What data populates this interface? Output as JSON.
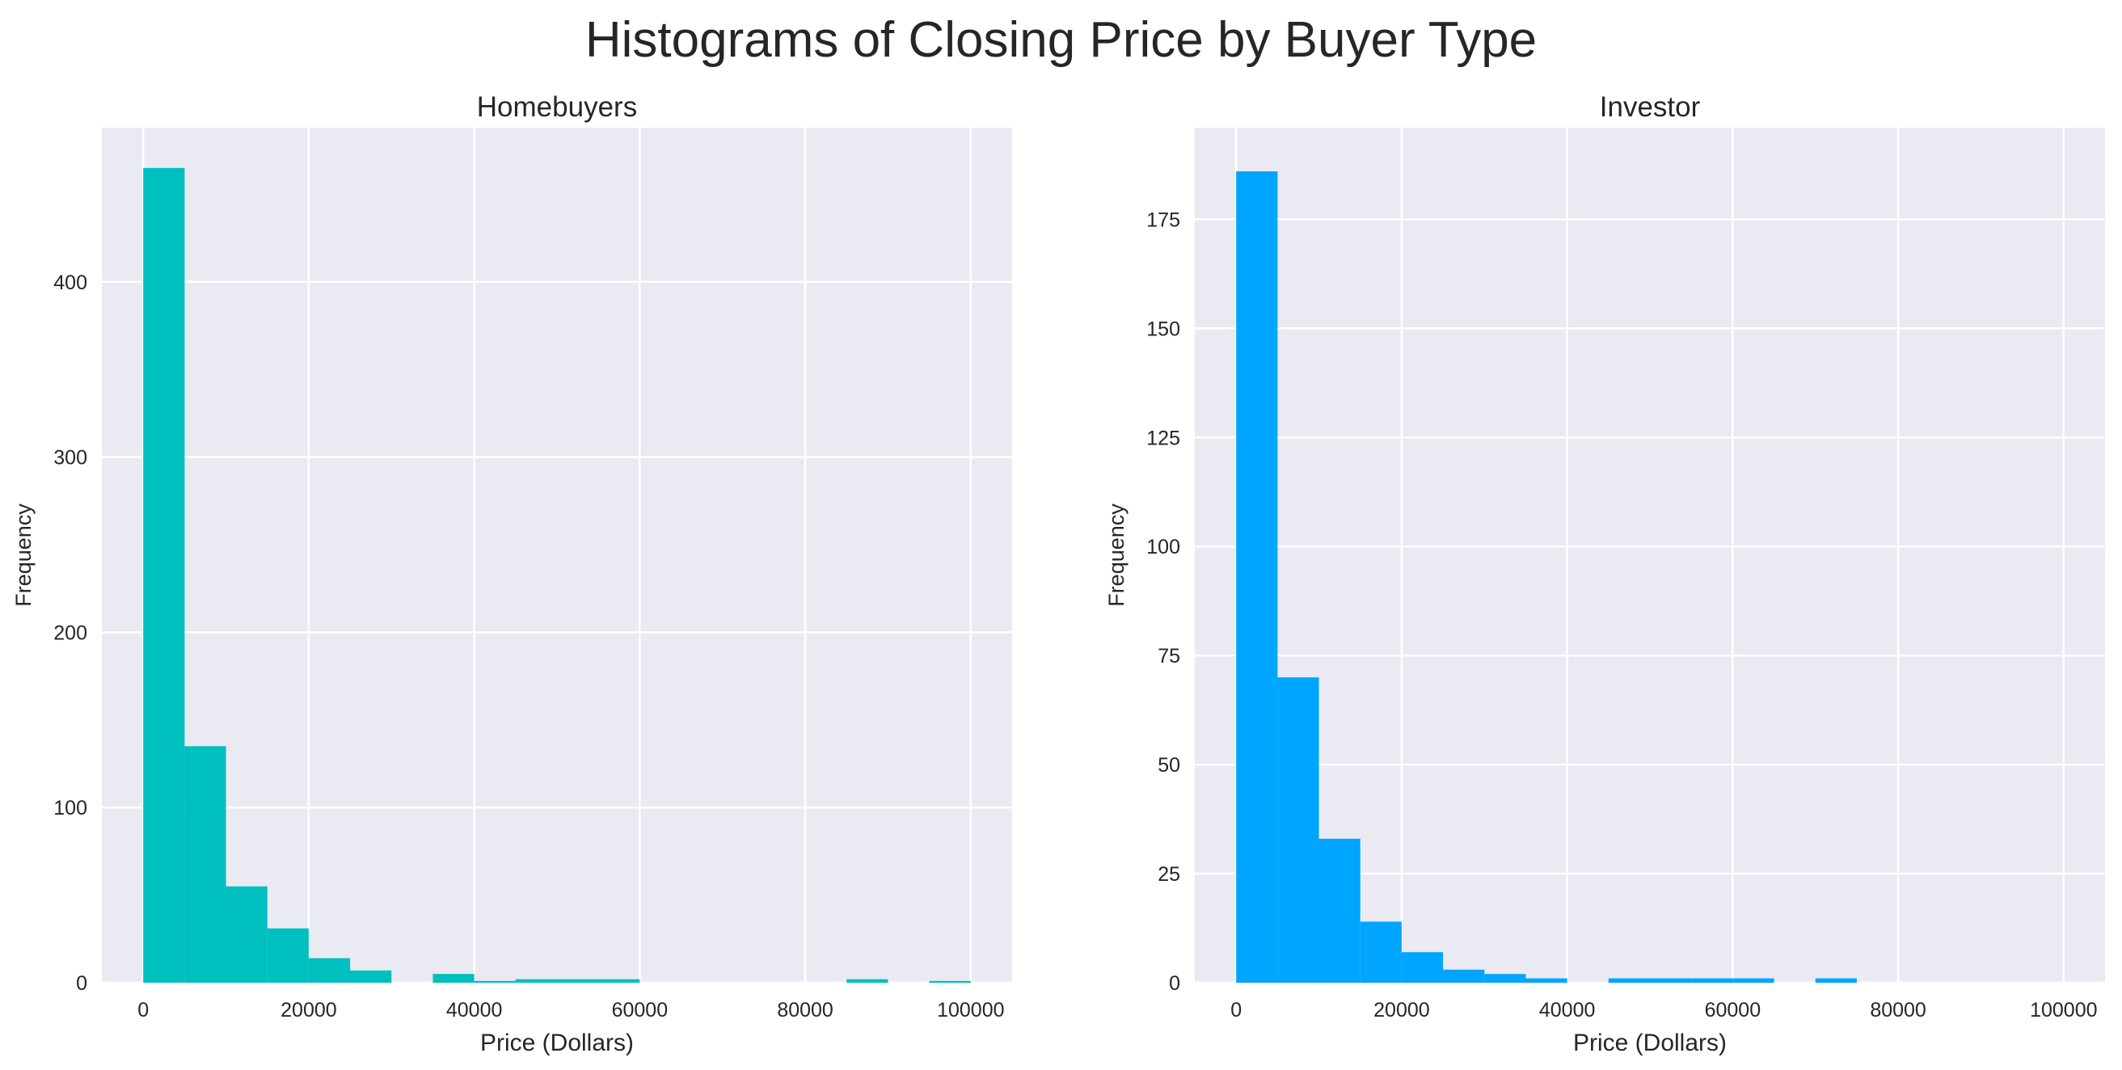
{
  "figure": {
    "title": "Histograms of Closing Price by Buyer Type",
    "background": "#ffffff",
    "axes_background": "#eaeaf2",
    "grid_color": "#ffffff"
  },
  "chart_data": [
    {
      "type": "bar",
      "title": "Homebuyers",
      "xlabel": "Price (Dollars)",
      "ylabel": "Frequency",
      "bar_color": "#00bfbf",
      "xlim": [
        -5000,
        105000
      ],
      "ylim": [
        0,
        488
      ],
      "xticks": [
        0,
        20000,
        40000,
        60000,
        80000,
        100000
      ],
      "yticks": [
        0,
        100,
        200,
        300,
        400
      ],
      "grid": true,
      "bin_width": 5000,
      "bins": [
        {
          "x0": 0,
          "x1": 5000,
          "count": 465
        },
        {
          "x0": 5000,
          "x1": 10000,
          "count": 135
        },
        {
          "x0": 10000,
          "x1": 15000,
          "count": 55
        },
        {
          "x0": 15000,
          "x1": 20000,
          "count": 31
        },
        {
          "x0": 20000,
          "x1": 25000,
          "count": 14
        },
        {
          "x0": 25000,
          "x1": 30000,
          "count": 7
        },
        {
          "x0": 30000,
          "x1": 35000,
          "count": 0
        },
        {
          "x0": 35000,
          "x1": 40000,
          "count": 5
        },
        {
          "x0": 40000,
          "x1": 45000,
          "count": 1
        },
        {
          "x0": 45000,
          "x1": 50000,
          "count": 2
        },
        {
          "x0": 50000,
          "x1": 55000,
          "count": 2
        },
        {
          "x0": 55000,
          "x1": 60000,
          "count": 2
        },
        {
          "x0": 60000,
          "x1": 65000,
          "count": 0
        },
        {
          "x0": 65000,
          "x1": 70000,
          "count": 0
        },
        {
          "x0": 70000,
          "x1": 75000,
          "count": 0
        },
        {
          "x0": 75000,
          "x1": 80000,
          "count": 0
        },
        {
          "x0": 80000,
          "x1": 85000,
          "count": 0
        },
        {
          "x0": 85000,
          "x1": 90000,
          "count": 2
        },
        {
          "x0": 90000,
          "x1": 95000,
          "count": 0
        },
        {
          "x0": 95000,
          "x1": 100000,
          "count": 1
        }
      ]
    },
    {
      "type": "bar",
      "title": "Investor",
      "xlabel": "Price (Dollars)",
      "ylabel": "Frequency",
      "bar_color": "#00a5ff",
      "xlim": [
        -5000,
        105000
      ],
      "ylim": [
        0,
        196
      ],
      "xticks": [
        0,
        20000,
        40000,
        60000,
        80000,
        100000
      ],
      "yticks": [
        0,
        25,
        50,
        75,
        100,
        125,
        150,
        175
      ],
      "grid": true,
      "bin_width": 5000,
      "bins": [
        {
          "x0": 0,
          "x1": 5000,
          "count": 186
        },
        {
          "x0": 5000,
          "x1": 10000,
          "count": 70
        },
        {
          "x0": 10000,
          "x1": 15000,
          "count": 33
        },
        {
          "x0": 15000,
          "x1": 20000,
          "count": 14
        },
        {
          "x0": 20000,
          "x1": 25000,
          "count": 7
        },
        {
          "x0": 25000,
          "x1": 30000,
          "count": 3
        },
        {
          "x0": 30000,
          "x1": 35000,
          "count": 2
        },
        {
          "x0": 35000,
          "x1": 40000,
          "count": 1
        },
        {
          "x0": 40000,
          "x1": 45000,
          "count": 0
        },
        {
          "x0": 45000,
          "x1": 50000,
          "count": 1
        },
        {
          "x0": 50000,
          "x1": 55000,
          "count": 1
        },
        {
          "x0": 55000,
          "x1": 60000,
          "count": 1
        },
        {
          "x0": 60000,
          "x1": 65000,
          "count": 1
        },
        {
          "x0": 65000,
          "x1": 70000,
          "count": 0
        },
        {
          "x0": 70000,
          "x1": 75000,
          "count": 1
        },
        {
          "x0": 75000,
          "x1": 80000,
          "count": 0
        },
        {
          "x0": 80000,
          "x1": 85000,
          "count": 0
        },
        {
          "x0": 85000,
          "x1": 90000,
          "count": 0
        },
        {
          "x0": 90000,
          "x1": 95000,
          "count": 0
        },
        {
          "x0": 95000,
          "x1": 100000,
          "count": 0
        }
      ]
    }
  ]
}
